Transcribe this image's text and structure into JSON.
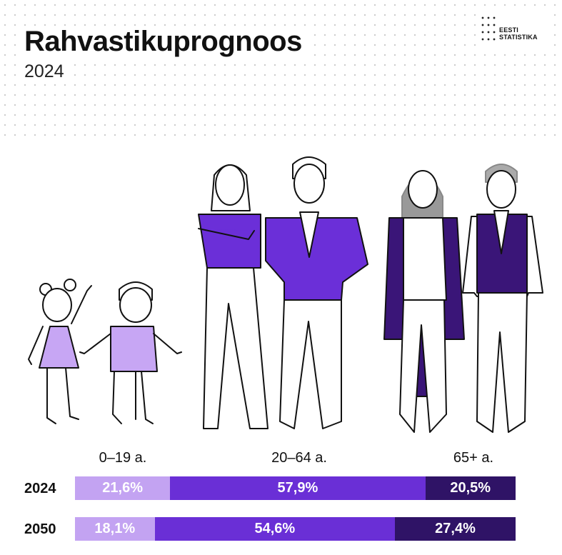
{
  "title": "Rahvastikuprognoos",
  "subtitle": "2024",
  "logo": {
    "line1": "EESTI",
    "line2": "STATISTIKA"
  },
  "colors": {
    "young": "#c3a3f2",
    "working": "#6a2fd6",
    "elderly": "#2f1366",
    "figure_young": "#c7a6f4",
    "figure_working": "#6b2fd8",
    "figure_elderly": "#3a1578"
  },
  "chart_data": {
    "type": "bar",
    "orientation": "horizontal-stacked",
    "categories": [
      "2024",
      "2050"
    ],
    "age_groups": [
      "0–19 a.",
      "20–64 a.",
      "65+ a."
    ],
    "series": [
      {
        "name": "0–19 a.",
        "values": [
          21.6,
          18.1
        ],
        "labels": [
          "21,6%",
          "18,1%"
        ]
      },
      {
        "name": "20–64 a.",
        "values": [
          57.9,
          54.6
        ],
        "labels": [
          "57,9%",
          "54,6%"
        ]
      },
      {
        "name": "65+ a.",
        "values": [
          20.5,
          27.4
        ],
        "labels": [
          "20,5%",
          "27,4%"
        ]
      }
    ],
    "unit": "%"
  }
}
